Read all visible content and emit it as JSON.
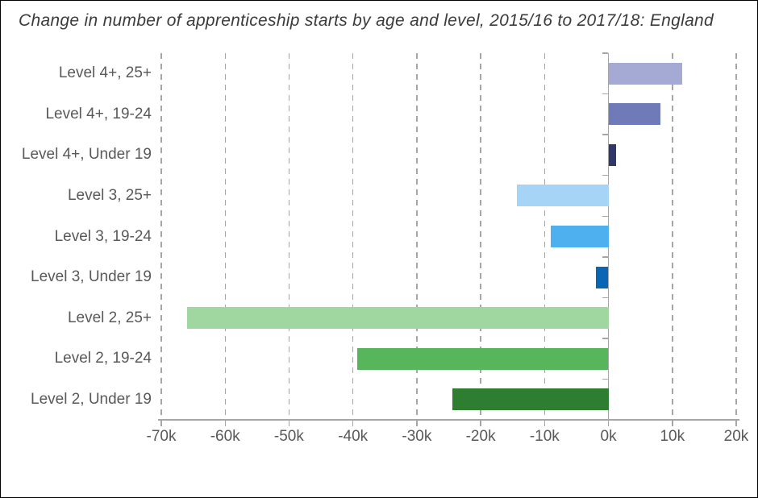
{
  "chart_data": {
    "type": "bar",
    "orientation": "horizontal",
    "title": "Change in number of apprenticeship starts by age and level, 2015/16 to 2017/18: England",
    "categories": [
      "Level 4+, 25+",
      "Level 4+, 19-24",
      "Level 4+, Under 19",
      "Level 3, 25+",
      "Level 3, 19-24",
      "Level 3, Under 19",
      "Level 2, 25+",
      "Level 2, 19-24",
      "Level 2, Under 19"
    ],
    "values_thousands": [
      11.5,
      8.1,
      1.2,
      -14.3,
      -9.0,
      -2.0,
      -66.0,
      -39.3,
      -24.5
    ],
    "bar_colors": [
      "#a5aad4",
      "#6f7ab8",
      "#313867",
      "#a6d4f7",
      "#4fb0f0",
      "#0a66b4",
      "#a0d6a0",
      "#57b65c",
      "#2e7d31"
    ],
    "xlim_thousands": [
      -70,
      20
    ],
    "x_ticks_thousands": [
      -70,
      -60,
      -50,
      -40,
      -30,
      -20,
      -10,
      0,
      10,
      20
    ],
    "x_tick_labels": [
      "-70k",
      "-60k",
      "-50k",
      "-40k",
      "-30k",
      "-20k",
      "-10k",
      "0k",
      "10k",
      "20k"
    ],
    "xlabel": "",
    "ylabel": "",
    "legend": "none",
    "grid": "vertical dashed gridlines at every tick except zero; solid zero baseline with category tick marks"
  },
  "colors": {
    "background": "#ffffff",
    "frame_border": "#000000",
    "axis": "#a6a6a6",
    "tick_label": "#595959",
    "title": "#3c3c3c"
  }
}
